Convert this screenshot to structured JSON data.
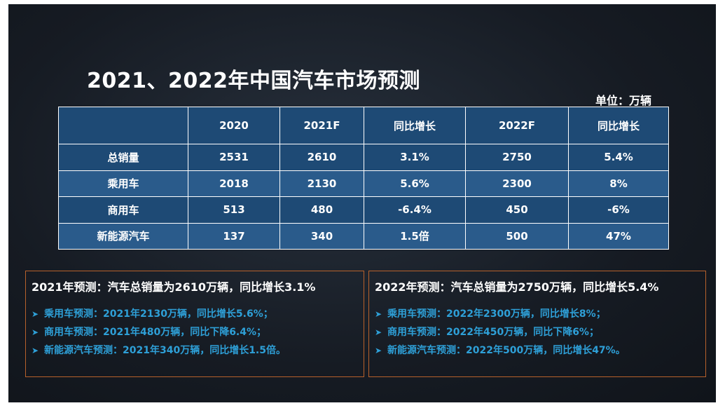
{
  "slide": {
    "title": "2021、2022年中国汽车市场预测",
    "unit": "单位：万辆"
  },
  "table": {
    "headers": [
      "",
      "2020",
      "2021F",
      "同比增长",
      "2022F",
      "同比增长"
    ],
    "rows": [
      [
        "总销量",
        "2531",
        "2610",
        "3.1%",
        "2750",
        "5.4%"
      ],
      [
        "乘用车",
        "2018",
        "2130",
        "5.6%",
        "2300",
        "8%"
      ],
      [
        "商用车",
        "513",
        "480",
        "-6.4%",
        "450",
        "-6%"
      ],
      [
        "新能源汽车",
        "137",
        "340",
        "1.5倍",
        "500",
        "47%"
      ]
    ]
  },
  "forecast_2021": {
    "heading": "2021年预测：汽车总销量为2610万辆，同比增长3.1%",
    "items": [
      "乘用车预测：2021年2130万辆，同比增长5.6%；",
      "商用车预测：2021年480万辆，同比下降6.4%；",
      "新能源汽车预测：2021年340万辆，同比增长1.5倍。"
    ]
  },
  "forecast_2022": {
    "heading": "2022年预测：汽车总销量为2750万辆，同比增长5.4%",
    "items": [
      "乘用车预测：2022年2300万辆，同比增长8%；",
      "商用车预测：2022年450万辆，同比下降6%；",
      "新能源汽车预测：2022年500万辆，同比增长47%。"
    ]
  },
  "bullet_icon": "arrow-bullet-icon",
  "colors": {
    "background": "#161b23",
    "table_dark": "#1e4a75",
    "table_light": "#2a5b8b",
    "box_border": "#b7612b",
    "bullet_text": "#2ea0d8"
  }
}
